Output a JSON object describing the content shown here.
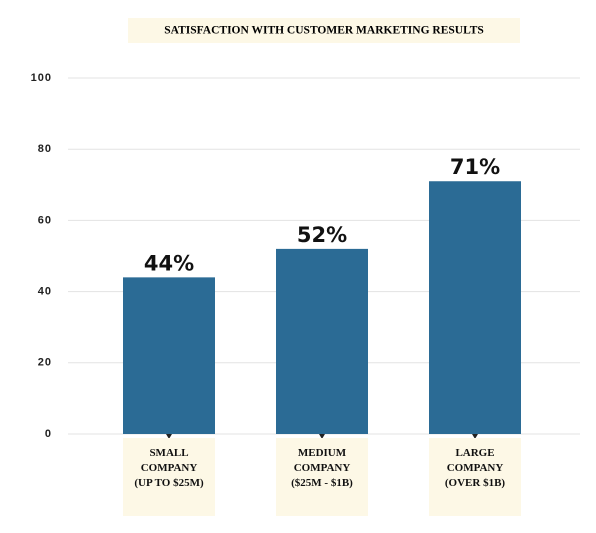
{
  "chart_data": {
    "type": "bar",
    "title": "SATISFACTION WITH CUSTOMER MARKETING RESULTS",
    "categories": [
      "SMALL COMPANY (UP TO $25M)",
      "MEDIUM COMPANY ($25M - $1B)",
      "LARGE COMPANY (OVER $1B)"
    ],
    "values": [
      44,
      52,
      71
    ],
    "value_labels": [
      "44%",
      "52%",
      "71%"
    ],
    "color": "#2b6b95",
    "ylim": [
      0,
      100
    ],
    "yticks": [
      0,
      20,
      40,
      60,
      80,
      100
    ],
    "grid": true
  }
}
